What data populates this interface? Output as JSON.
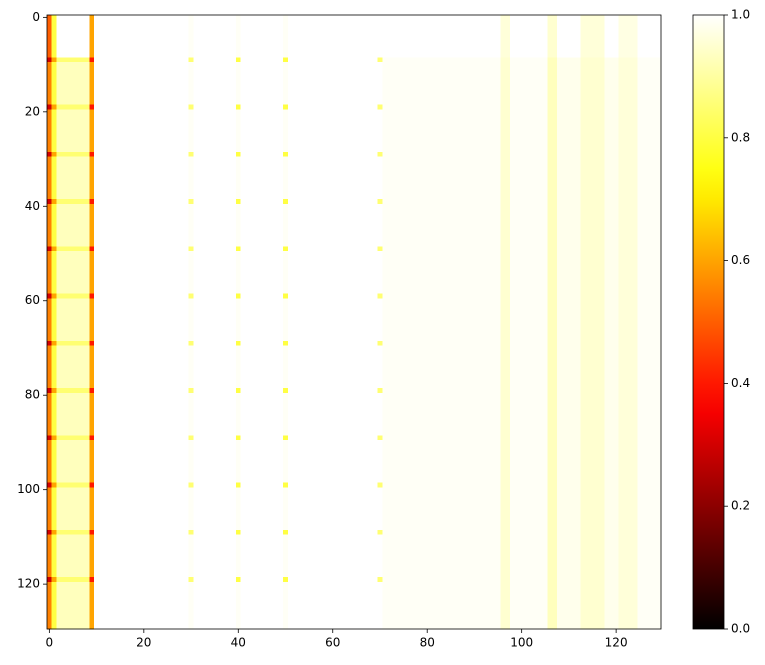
{
  "chart_data": {
    "type": "heatmap",
    "cmap": "hot",
    "x_edges": [
      -0.5,
      0.5,
      1.5,
      8.5,
      9.5,
      29.5,
      30.5,
      39.5,
      40.5,
      49.5,
      50.5,
      69.5,
      70.5,
      95.5,
      97.5,
      105.5,
      107.5,
      112.5,
      117.5,
      120.5,
      124.5,
      129.5
    ],
    "y_edges": [
      -0.5,
      8.5,
      9.5,
      18.5,
      19.5,
      28.5,
      29.5,
      38.5,
      39.5,
      48.5,
      49.5,
      58.5,
      59.5,
      68.5,
      69.5,
      78.5,
      79.5,
      88.5,
      89.5,
      98.5,
      99.5,
      108.5,
      109.5,
      118.5,
      119.5,
      129.5
    ],
    "values": [
      [
        0.5,
        0.8,
        1,
        0.6,
        1,
        0.99,
        1,
        0.99,
        1,
        0.99,
        1,
        1,
        1,
        0.96,
        1,
        0.95,
        1,
        0.96,
        1,
        0.97,
        1
      ],
      [
        0.3,
        0.6,
        0.85,
        0.4,
        1,
        0.85,
        1,
        0.8,
        1,
        0.8,
        1,
        0.85,
        0.99,
        0.95,
        0.99,
        0.93,
        0.98,
        0.95,
        0.98,
        0.96,
        0.99
      ],
      [
        0.55,
        0.8,
        0.93,
        0.6,
        1,
        0.99,
        1,
        0.99,
        1,
        0.99,
        1,
        1,
        0.99,
        0.95,
        0.99,
        0.93,
        0.98,
        0.95,
        0.98,
        0.96,
        0.99
      ],
      [
        0.3,
        0.6,
        0.85,
        0.4,
        1,
        0.85,
        1,
        0.8,
        1,
        0.8,
        1,
        0.85,
        0.99,
        0.95,
        0.99,
        0.93,
        0.98,
        0.95,
        0.98,
        0.96,
        0.99
      ],
      [
        0.55,
        0.8,
        0.93,
        0.6,
        1,
        0.99,
        1,
        0.99,
        1,
        0.99,
        1,
        1,
        0.99,
        0.95,
        0.99,
        0.93,
        0.98,
        0.95,
        0.98,
        0.96,
        0.99
      ],
      [
        0.3,
        0.6,
        0.85,
        0.4,
        1,
        0.85,
        1,
        0.8,
        1,
        0.8,
        1,
        0.85,
        0.99,
        0.95,
        0.99,
        0.93,
        0.98,
        0.95,
        0.98,
        0.96,
        0.99
      ],
      [
        0.55,
        0.8,
        0.93,
        0.6,
        1,
        0.99,
        1,
        0.99,
        1,
        0.99,
        1,
        1,
        0.99,
        0.95,
        0.99,
        0.93,
        0.98,
        0.95,
        0.98,
        0.96,
        0.99
      ],
      [
        0.3,
        0.6,
        0.85,
        0.4,
        1,
        0.85,
        1,
        0.8,
        1,
        0.8,
        1,
        0.85,
        0.99,
        0.95,
        0.99,
        0.93,
        0.98,
        0.95,
        0.98,
        0.96,
        0.99
      ],
      [
        0.55,
        0.8,
        0.93,
        0.6,
        1,
        0.99,
        1,
        0.99,
        1,
        0.99,
        1,
        1,
        0.99,
        0.95,
        0.99,
        0.93,
        0.98,
        0.95,
        0.98,
        0.96,
        0.99
      ],
      [
        0.3,
        0.6,
        0.85,
        0.4,
        1,
        0.85,
        1,
        0.8,
        1,
        0.8,
        1,
        0.85,
        0.99,
        0.95,
        0.99,
        0.93,
        0.98,
        0.95,
        0.98,
        0.96,
        0.99
      ],
      [
        0.55,
        0.8,
        0.93,
        0.6,
        1,
        0.99,
        1,
        0.99,
        1,
        0.99,
        1,
        1,
        0.99,
        0.95,
        0.99,
        0.93,
        0.98,
        0.95,
        0.98,
        0.96,
        0.99
      ],
      [
        0.3,
        0.6,
        0.85,
        0.4,
        1,
        0.85,
        1,
        0.8,
        1,
        0.8,
        1,
        0.85,
        0.99,
        0.95,
        0.99,
        0.93,
        0.98,
        0.95,
        0.98,
        0.96,
        0.99
      ],
      [
        0.55,
        0.8,
        0.93,
        0.6,
        1,
        0.99,
        1,
        0.99,
        1,
        0.99,
        1,
        1,
        0.99,
        0.95,
        0.99,
        0.93,
        0.98,
        0.95,
        0.98,
        0.96,
        0.99
      ],
      [
        0.3,
        0.6,
        0.85,
        0.4,
        1,
        0.85,
        1,
        0.8,
        1,
        0.8,
        1,
        0.85,
        0.99,
        0.95,
        0.99,
        0.93,
        0.98,
        0.95,
        0.98,
        0.96,
        0.99
      ],
      [
        0.55,
        0.8,
        0.93,
        0.6,
        1,
        0.99,
        1,
        0.99,
        1,
        0.99,
        1,
        1,
        0.99,
        0.95,
        0.99,
        0.93,
        0.98,
        0.95,
        0.98,
        0.96,
        0.99
      ],
      [
        0.3,
        0.6,
        0.85,
        0.4,
        1,
        0.85,
        1,
        0.8,
        1,
        0.8,
        1,
        0.85,
        0.99,
        0.95,
        0.99,
        0.93,
        0.98,
        0.95,
        0.98,
        0.96,
        0.99
      ],
      [
        0.55,
        0.8,
        0.93,
        0.6,
        1,
        0.99,
        1,
        0.99,
        1,
        0.99,
        1,
        1,
        0.99,
        0.95,
        0.99,
        0.93,
        0.98,
        0.95,
        0.98,
        0.96,
        0.99
      ],
      [
        0.3,
        0.6,
        0.85,
        0.4,
        1,
        0.85,
        1,
        0.8,
        1,
        0.8,
        1,
        0.85,
        0.99,
        0.95,
        0.99,
        0.93,
        0.98,
        0.95,
        0.98,
        0.96,
        0.99
      ],
      [
        0.55,
        0.8,
        0.93,
        0.6,
        1,
        0.99,
        1,
        0.99,
        1,
        0.99,
        1,
        1,
        0.99,
        0.95,
        0.99,
        0.93,
        0.98,
        0.95,
        0.98,
        0.96,
        0.99
      ],
      [
        0.3,
        0.6,
        0.85,
        0.4,
        1,
        0.85,
        1,
        0.8,
        1,
        0.8,
        1,
        0.85,
        0.99,
        0.95,
        0.99,
        0.93,
        0.98,
        0.95,
        0.98,
        0.96,
        0.99
      ],
      [
        0.55,
        0.8,
        0.93,
        0.6,
        1,
        0.99,
        1,
        0.99,
        1,
        0.99,
        1,
        1,
        0.99,
        0.95,
        0.99,
        0.93,
        0.98,
        0.95,
        0.98,
        0.96,
        0.99
      ],
      [
        0.3,
        0.6,
        0.85,
        0.4,
        1,
        0.85,
        1,
        0.8,
        1,
        0.8,
        1,
        0.85,
        0.99,
        0.95,
        0.99,
        0.93,
        0.98,
        0.95,
        0.98,
        0.96,
        0.99
      ],
      [
        0.55,
        0.8,
        0.93,
        0.6,
        1,
        0.99,
        1,
        0.99,
        1,
        0.99,
        1,
        1,
        0.99,
        0.95,
        0.99,
        0.93,
        0.98,
        0.95,
        0.98,
        0.96,
        0.99
      ],
      [
        0.3,
        0.6,
        0.85,
        0.4,
        1,
        0.85,
        1,
        0.8,
        1,
        0.8,
        1,
        0.85,
        0.99,
        0.95,
        0.99,
        0.93,
        0.98,
        0.95,
        0.98,
        0.96,
        0.99
      ],
      [
        0.55,
        0.8,
        0.93,
        0.6,
        1,
        0.99,
        1,
        0.99,
        1,
        0.99,
        1,
        1,
        0.99,
        0.95,
        0.99,
        0.93,
        0.98,
        0.95,
        0.98,
        0.96,
        0.99
      ]
    ],
    "xlim": [
      -0.5,
      129.5
    ],
    "ylim": [
      129.5,
      -0.5
    ],
    "xticks": [
      0,
      20,
      40,
      60,
      80,
      100,
      120
    ],
    "yticks": [
      0,
      20,
      40,
      60,
      80,
      100,
      120
    ],
    "colorbar": {
      "lim": [
        0,
        1
      ],
      "ticks": [
        {
          "value": 0,
          "label": "0.0"
        },
        0.2,
        0.4,
        0.6,
        0.8,
        {
          "value": 1,
          "label": "1.0"
        }
      ]
    }
  }
}
